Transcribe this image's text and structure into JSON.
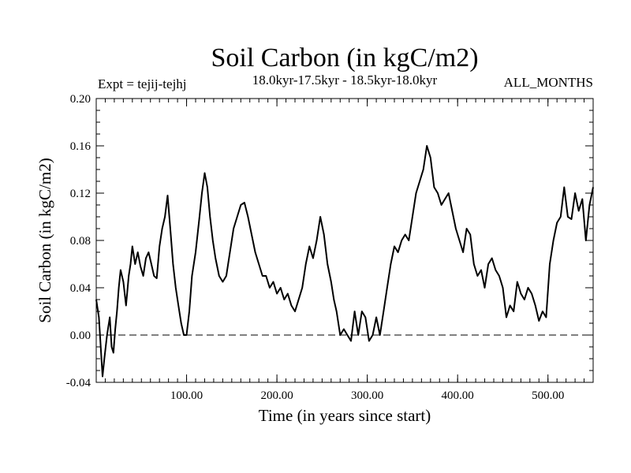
{
  "chart_data": {
    "type": "line",
    "title": "Soil Carbon (in kgC/m2)",
    "subtitle": "18.0kyr-17.5kyr - 18.5kyr-18.0kyr",
    "experiment_label": "Expt = tejij-tejhj",
    "season_label": "ALL_MONTHS",
    "xlabel": "Time (in years since start)",
    "ylabel": "Soil Carbon (in kgC/m2)",
    "xlim": [
      0,
      550
    ],
    "ylim": [
      -0.04,
      0.2
    ],
    "x_ticks": [
      100,
      200,
      300,
      400,
      500
    ],
    "x_tick_labels": [
      "100.00",
      "200.00",
      "300.00",
      "400.00",
      "500.00"
    ],
    "y_ticks": [
      -0.04,
      0.0,
      0.04,
      0.08,
      0.12,
      0.16,
      0.2
    ],
    "y_tick_labels": [
      "-0.04",
      "0.00",
      "0.04",
      "0.08",
      "0.12",
      "0.16",
      "0.20"
    ],
    "reference_line": {
      "y": 0.0,
      "style": "dashed"
    },
    "series": [
      {
        "name": "Soil Carbon",
        "x": [
          0,
          3,
          5,
          7,
          9,
          12,
          15,
          17,
          19,
          21,
          23,
          25,
          27,
          30,
          33,
          36,
          38,
          40,
          43,
          46,
          49,
          52,
          55,
          58,
          61,
          64,
          67,
          70,
          73,
          76,
          79,
          82,
          85,
          88,
          91,
          94,
          97,
          100,
          103,
          106,
          110,
          114,
          117,
          120,
          123,
          126,
          129,
          132,
          136,
          140,
          144,
          148,
          152,
          156,
          160,
          164,
          168,
          172,
          176,
          180,
          184,
          188,
          192,
          196,
          200,
          204,
          208,
          212,
          216,
          220,
          224,
          228,
          232,
          236,
          240,
          244,
          248,
          252,
          256,
          260,
          263,
          266,
          270,
          274,
          278,
          282,
          286,
          290,
          294,
          298,
          302,
          306,
          310,
          314,
          318,
          322,
          326,
          330,
          334,
          338,
          342,
          346,
          350,
          354,
          358,
          362,
          366,
          370,
          374,
          378,
          382,
          386,
          390,
          394,
          398,
          402,
          406,
          410,
          414,
          418,
          422,
          426,
          430,
          434,
          438,
          442,
          446,
          450,
          454,
          458,
          462,
          466,
          470,
          474,
          478,
          482,
          486,
          490,
          494,
          498,
          502,
          506,
          510,
          514,
          518,
          522,
          526,
          530,
          534,
          538,
          542,
          546,
          550
        ],
        "values": [
          0.03,
          0.015,
          -0.01,
          -0.035,
          -0.02,
          0.0,
          0.015,
          -0.01,
          -0.015,
          0.005,
          0.02,
          0.04,
          0.055,
          0.045,
          0.025,
          0.05,
          0.06,
          0.075,
          0.06,
          0.07,
          0.058,
          0.05,
          0.065,
          0.07,
          0.06,
          0.05,
          0.048,
          0.075,
          0.09,
          0.1,
          0.118,
          0.09,
          0.06,
          0.04,
          0.025,
          0.01,
          0.0,
          0.0,
          0.02,
          0.05,
          0.07,
          0.098,
          0.12,
          0.137,
          0.125,
          0.1,
          0.08,
          0.065,
          0.05,
          0.045,
          0.05,
          0.07,
          0.09,
          0.1,
          0.11,
          0.112,
          0.1,
          0.085,
          0.07,
          0.06,
          0.05,
          0.05,
          0.04,
          0.045,
          0.035,
          0.04,
          0.03,
          0.035,
          0.025,
          0.02,
          0.03,
          0.04,
          0.06,
          0.075,
          0.065,
          0.08,
          0.1,
          0.085,
          0.06,
          0.045,
          0.03,
          0.02,
          0.0,
          0.005,
          0.0,
          -0.005,
          0.02,
          0.0,
          0.02,
          0.015,
          -0.005,
          0.0,
          0.015,
          0.0,
          0.02,
          0.04,
          0.06,
          0.075,
          0.07,
          0.08,
          0.085,
          0.08,
          0.1,
          0.12,
          0.13,
          0.14,
          0.16,
          0.15,
          0.125,
          0.12,
          0.11,
          0.115,
          0.12,
          0.105,
          0.09,
          0.08,
          0.07,
          0.09,
          0.085,
          0.06,
          0.05,
          0.055,
          0.04,
          0.06,
          0.065,
          0.055,
          0.05,
          0.04,
          0.015,
          0.025,
          0.02,
          0.045,
          0.035,
          0.03,
          0.04,
          0.035,
          0.025,
          0.012,
          0.02,
          0.015,
          0.06,
          0.08,
          0.095,
          0.1,
          0.125,
          0.1,
          0.098,
          0.12,
          0.105,
          0.115,
          0.08,
          0.11,
          0.125
        ]
      }
    ]
  }
}
